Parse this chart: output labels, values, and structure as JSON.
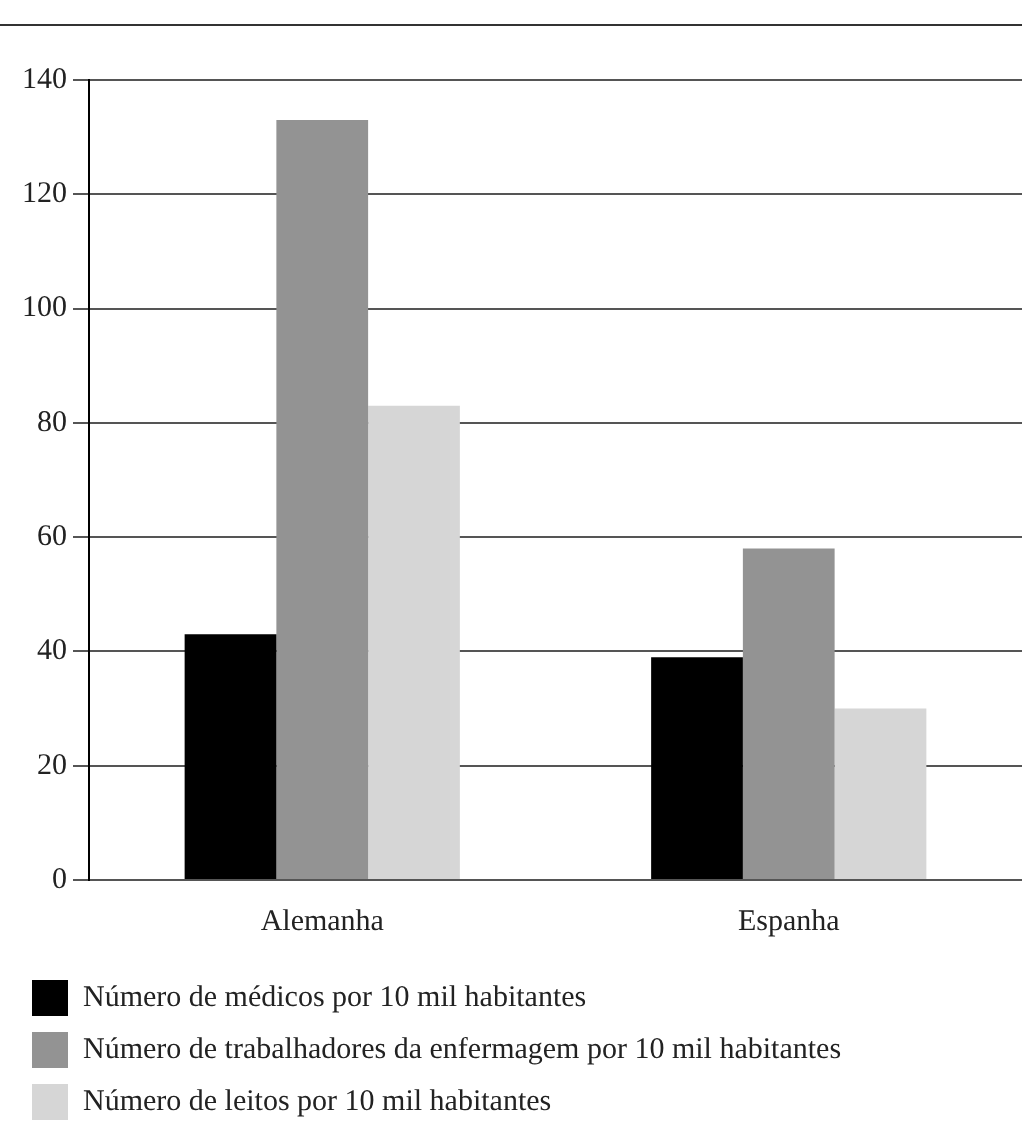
{
  "chart_data": {
    "type": "bar",
    "categories": [
      "Alemanha",
      "Espanha"
    ],
    "series": [
      {
        "name": "Número de médicos por 10 mil habitantes",
        "color": "#000000",
        "values": [
          43,
          39
        ]
      },
      {
        "name": "Número de trabalhadores da enfermagem por 10 mil habitantes",
        "color": "#939393",
        "values": [
          133,
          58
        ]
      },
      {
        "name": "Número de leitos por 10 mil habitantes",
        "color": "#d6d6d6",
        "values": [
          83,
          30
        ]
      }
    ],
    "ylim": [
      0,
      140
    ],
    "yticks": [
      0,
      20,
      40,
      60,
      80,
      100,
      120,
      140
    ],
    "grid": "y",
    "legend": "bottom left"
  }
}
